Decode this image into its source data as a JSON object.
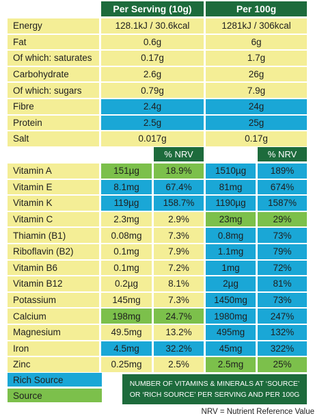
{
  "header": {
    "per_serving": "Per Serving (10g)",
    "per_100g": "Per 100g",
    "nrv": "% NRV"
  },
  "colors": {
    "default": "#f4ee96",
    "rich_source": "#1aa7d6",
    "source": "#7cc04b",
    "header": "#1d6b3c"
  },
  "nutrition": [
    {
      "label": "Energy",
      "serving": "128.1kJ / 30.6kcal",
      "per100": "1281kJ / 306kcal",
      "status": "none"
    },
    {
      "label": "Fat",
      "serving": "0.6g",
      "per100": "6g",
      "status": "none"
    },
    {
      "label": "Of which: saturates",
      "serving": "0.17g",
      "per100": "1.7g",
      "status": "none"
    },
    {
      "label": "Carbohydrate",
      "serving": "2.6g",
      "per100": "26g",
      "status": "none"
    },
    {
      "label": "Of which: sugars",
      "serving": "0.79g",
      "per100": "7.9g",
      "status": "none"
    },
    {
      "label": "Fibre",
      "serving": "2.4g",
      "per100": "24g",
      "status": "rich"
    },
    {
      "label": "Protein",
      "serving": "2.5g",
      "per100": "25g",
      "status": "rich"
    },
    {
      "label": "Salt",
      "serving": "0.017g",
      "per100": "0.17g",
      "status": "none"
    }
  ],
  "micros": [
    {
      "label": "Vitamin A",
      "s_val": "151µg",
      "s_nrv": "18.9%",
      "s_status": "source",
      "p_val": "1510µg",
      "p_nrv": "189%",
      "p_status": "rich"
    },
    {
      "label": "Vitamin E",
      "s_val": "8.1mg",
      "s_nrv": "67.4%",
      "s_status": "rich",
      "p_val": "81mg",
      "p_nrv": "674%",
      "p_status": "rich"
    },
    {
      "label": "Vitamin K",
      "s_val": "119µg",
      "s_nrv": "158.7%",
      "s_status": "rich",
      "p_val": "1190µg",
      "p_nrv": "1587%",
      "p_status": "rich"
    },
    {
      "label": "Vitamin C",
      "s_val": "2.3mg",
      "s_nrv": "2.9%",
      "s_status": "none",
      "p_val": "23mg",
      "p_nrv": "29%",
      "p_status": "source"
    },
    {
      "label": "Thiamin (B1)",
      "s_val": "0.08mg",
      "s_nrv": "7.3%",
      "s_status": "none",
      "p_val": "0.8mg",
      "p_nrv": "73%",
      "p_status": "rich"
    },
    {
      "label": "Riboflavin (B2)",
      "s_val": "0.1mg",
      "s_nrv": "7.9%",
      "s_status": "none",
      "p_val": "1.1mg",
      "p_nrv": "79%",
      "p_status": "rich"
    },
    {
      "label": "Vitamin B6",
      "s_val": "0.1mg",
      "s_nrv": "7.2%",
      "s_status": "none",
      "p_val": "1mg",
      "p_nrv": "72%",
      "p_status": "rich"
    },
    {
      "label": "Vitamin B12",
      "s_val": "0.2µg",
      "s_nrv": "8.1%",
      "s_status": "none",
      "p_val": "2µg",
      "p_nrv": "81%",
      "p_status": "rich"
    },
    {
      "label": "Potassium",
      "s_val": "145mg",
      "s_nrv": "7.3%",
      "s_status": "none",
      "p_val": "1450mg",
      "p_nrv": "73%",
      "p_status": "rich"
    },
    {
      "label": "Calcium",
      "s_val": "198mg",
      "s_nrv": "24.7%",
      "s_status": "source",
      "p_val": "1980mg",
      "p_nrv": "247%",
      "p_status": "rich"
    },
    {
      "label": "Magnesium",
      "s_val": "49.5mg",
      "s_nrv": "13.2%",
      "s_status": "none",
      "p_val": "495mg",
      "p_nrv": "132%",
      "p_status": "rich"
    },
    {
      "label": "Iron",
      "s_val": "4.5mg",
      "s_nrv": "32.2%",
      "s_status": "rich",
      "p_val": "45mg",
      "p_nrv": "322%",
      "p_status": "rich"
    },
    {
      "label": "Zinc",
      "s_val": "0.25mg",
      "s_nrv": "2.5%",
      "s_status": "none",
      "p_val": "2.5mg",
      "p_nrv": "25%",
      "p_status": "source"
    }
  ],
  "legend": {
    "rich_source": "Rich Source",
    "source": "Source",
    "note": "NUMBER OF VITAMINS & MINERALS AT ‘SOURCE’ OR ‘RICH SOURCE’ PER SERVING AND PER 100G"
  },
  "footnote": "NRV = Nutrient Reference Value"
}
